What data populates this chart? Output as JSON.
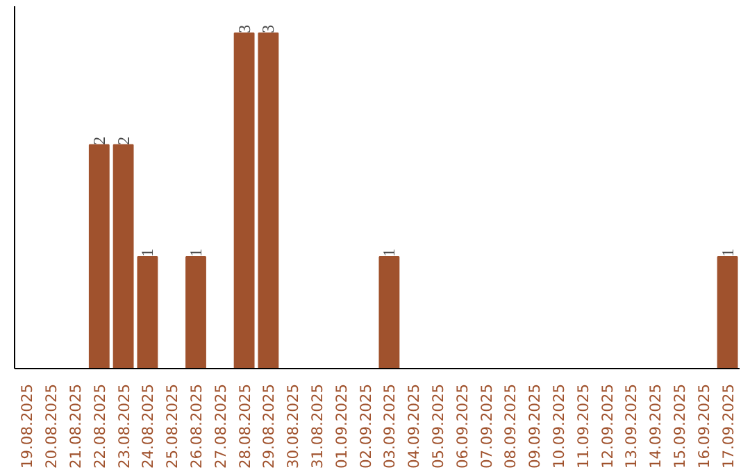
{
  "chart_data": {
    "type": "bar",
    "categories": [
      "19.08.2025",
      "20.08.2025",
      "21.08.2025",
      "22.08.2025",
      "23.08.2025",
      "24.08.2025",
      "25.08.2025",
      "26.08.2025",
      "27.08.2025",
      "28.08.2025",
      "29.08.2025",
      "30.08.2025",
      "31.08.2025",
      "01.09.2025",
      "02.09.2025",
      "03.09.2025",
      "04.09.2025",
      "05.09.2025",
      "06.09.2025",
      "07.09.2025",
      "08.09.2025",
      "09.09.2025",
      "10.09.2025",
      "11.09.2025",
      "12.09.2025",
      "13.09.2025",
      "14.09.2025",
      "15.09.2025",
      "16.09.2025",
      "17.09.2025"
    ],
    "values": [
      0,
      0,
      0,
      2,
      2,
      1,
      0,
      1,
      0,
      3,
      3,
      0,
      0,
      0,
      0,
      1,
      0,
      0,
      0,
      0,
      0,
      0,
      0,
      0,
      0,
      0,
      0,
      0,
      0,
      1
    ],
    "value_labels": [
      null,
      null,
      null,
      "2",
      "2",
      "1",
      null,
      "1",
      null,
      "3",
      "3",
      null,
      null,
      null,
      null,
      "1",
      null,
      null,
      null,
      null,
      null,
      null,
      null,
      null,
      null,
      null,
      null,
      null,
      null,
      "1"
    ],
    "color": "#a0522d",
    "grid": false
  }
}
